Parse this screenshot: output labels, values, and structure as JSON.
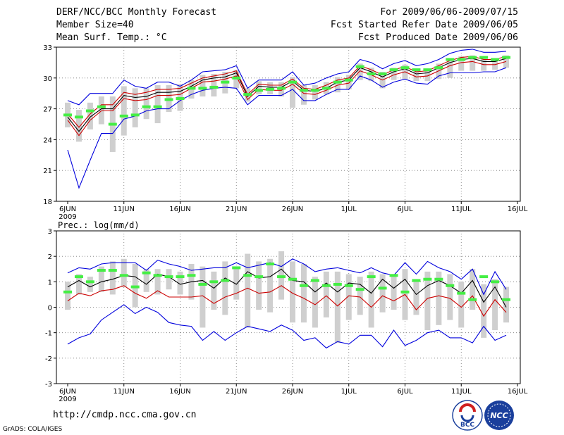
{
  "header": {
    "title": "DERF/NCC/BCC Monthly Forecast",
    "member_size": "Member Size=40",
    "variable": "Mean Surf. Temp.: °C",
    "period": "For 2009/06/06-2009/07/15",
    "fcst_started": "Fcst Started Refer Date 2009/06/05",
    "fcst_produced": "Fcst Produced Date 2009/06/06"
  },
  "footer": {
    "url": "http://cmdp.ncc.cma.gov.cn",
    "credit": "GrADS: COLA/IGES",
    "logo_left": "BCC",
    "logo_right": "NCC"
  },
  "chart_data": [
    {
      "type": "line",
      "title": "Mean Surf. Temp.: °C",
      "ylim": [
        18,
        33
      ],
      "yticks": [
        "18",
        "21",
        "24",
        "27",
        "30",
        "33"
      ],
      "xticks": [
        "6JUN",
        "11JUN",
        "16JUN",
        "21JUN",
        "26JUN",
        "1JUL",
        "6JUL",
        "11JUL",
        "16JUL"
      ],
      "year_label": "2009",
      "grid": true,
      "series": [
        {
          "name": "max",
          "color": "#0000dd",
          "values": [
            27.8,
            27.4,
            28.5,
            28.5,
            28.5,
            29.8,
            29.2,
            29.0,
            29.6,
            29.6,
            29.2,
            29.8,
            30.6,
            30.7,
            30.8,
            31.2,
            29.0,
            29.8,
            29.8,
            29.8,
            30.6,
            29.3,
            29.5,
            30.0,
            30.4,
            30.6,
            31.8,
            31.5,
            30.9,
            31.4,
            31.7,
            31.2,
            31.4,
            31.8,
            32.4,
            32.7,
            32.8,
            32.5,
            32.5,
            32.6
          ]
        },
        {
          "name": "upper",
          "color": "#cc0000",
          "values": [
            26.5,
            25.2,
            26.5,
            27.4,
            27.4,
            28.6,
            28.4,
            28.6,
            28.9,
            28.9,
            29.0,
            29.5,
            30.0,
            30.2,
            30.4,
            30.7,
            28.4,
            29.4,
            29.3,
            29.3,
            29.9,
            29.0,
            28.9,
            29.3,
            29.8,
            30.0,
            31.2,
            30.8,
            30.3,
            30.8,
            31.1,
            30.6,
            30.7,
            31.2,
            31.7,
            32.0,
            32.1,
            31.8,
            31.8,
            32.1
          ]
        },
        {
          "name": "mean",
          "color": "#000000",
          "values": [
            26.2,
            24.8,
            26.2,
            27.0,
            27.0,
            28.3,
            28.1,
            28.2,
            28.6,
            28.6,
            28.7,
            29.2,
            29.8,
            30.0,
            30.1,
            30.5,
            28.2,
            29.2,
            29.1,
            29.1,
            29.7,
            28.8,
            28.7,
            29.0,
            29.6,
            29.8,
            31.0,
            30.6,
            30.1,
            30.6,
            30.9,
            30.4,
            30.5,
            31.0,
            31.5,
            31.8,
            31.9,
            31.6,
            31.6,
            31.9
          ]
        },
        {
          "name": "lower",
          "color": "#cc0000",
          "values": [
            25.9,
            24.4,
            25.9,
            26.8,
            26.8,
            28.0,
            27.8,
            27.9,
            28.3,
            28.3,
            28.4,
            29.0,
            29.6,
            29.7,
            29.9,
            30.2,
            27.9,
            28.9,
            28.8,
            28.8,
            29.4,
            28.5,
            28.4,
            28.8,
            29.3,
            29.5,
            30.7,
            30.3,
            29.8,
            30.3,
            30.6,
            30.1,
            30.2,
            30.7,
            31.2,
            31.5,
            31.6,
            31.3,
            31.3,
            31.6
          ]
        },
        {
          "name": "min",
          "color": "#0000dd",
          "values": [
            23.0,
            19.3,
            22.0,
            24.6,
            24.6,
            26.0,
            26.3,
            26.8,
            27.0,
            27.0,
            27.8,
            28.4,
            28.8,
            29.0,
            29.1,
            29.0,
            27.4,
            28.3,
            28.3,
            28.3,
            28.9,
            27.8,
            27.8,
            28.4,
            28.9,
            28.9,
            30.2,
            29.8,
            29.1,
            29.6,
            29.9,
            29.5,
            29.4,
            30.2,
            30.5,
            30.5,
            30.5,
            30.6,
            30.6,
            31.0
          ]
        },
        {
          "name": "green_marker",
          "color": "#44ee44",
          "values": [
            26.4,
            26.2,
            26.8,
            27.2,
            25.5,
            26.3,
            26.4,
            27.2,
            27.2,
            27.9,
            28.0,
            29.0,
            29.0,
            29.1,
            29.6,
            30.0,
            28.4,
            28.8,
            28.9,
            29.0,
            29.6,
            28.8,
            28.8,
            29.0,
            29.6,
            29.8,
            31.1,
            30.4,
            30.4,
            30.8,
            31.0,
            30.8,
            30.8,
            31.0,
            31.8,
            31.8,
            32.0,
            32.0,
            31.8,
            32.0
          ]
        }
      ],
      "gray_bars": {
        "top": [
          27.6,
          26.9,
          27.6,
          28.2,
          28.2,
          29.2,
          29.0,
          29.0,
          29.3,
          29.3,
          29.4,
          29.8,
          30.3,
          30.4,
          30.6,
          30.8,
          29.0,
          29.7,
          29.6,
          29.6,
          30.1,
          29.3,
          29.3,
          29.6,
          30.1,
          30.3,
          31.4,
          31.0,
          30.6,
          31.0,
          31.3,
          30.9,
          30.9,
          31.4,
          31.9,
          32.1,
          32.2,
          31.9,
          31.9,
          32.2
        ],
        "bottom": [
          25.2,
          23.8,
          25.0,
          25.5,
          22.8,
          24.4,
          25.2,
          26.0,
          25.6,
          26.7,
          26.8,
          28.0,
          28.2,
          28.2,
          28.5,
          29.0,
          27.7,
          28.4,
          28.4,
          28.2,
          27.1,
          27.4,
          27.9,
          28.4,
          28.6,
          28.9,
          29.8,
          29.7,
          29.0,
          29.8,
          29.9,
          29.7,
          29.7,
          29.9,
          30.0,
          30.7,
          30.7,
          30.7,
          30.8,
          31.0
        ]
      }
    },
    {
      "type": "line",
      "title": "Prec.: log(mm/d)",
      "ylim": [
        -3,
        3
      ],
      "yticks": [
        "-3",
        "-2",
        "-1",
        "0",
        "1",
        "2",
        "3"
      ],
      "xticks": [
        "6JUN",
        "11JUN",
        "16JUN",
        "21JUN",
        "26JUN",
        "1JUL",
        "6JUL",
        "11JUL",
        "16JUL"
      ],
      "year_label": "2009",
      "grid": true,
      "series": [
        {
          "name": "max",
          "color": "#0000dd",
          "values": [
            1.35,
            1.55,
            1.5,
            1.7,
            1.75,
            1.75,
            1.75,
            1.45,
            1.85,
            1.7,
            1.6,
            1.45,
            1.5,
            1.55,
            1.55,
            1.75,
            1.55,
            1.65,
            1.75,
            1.6,
            1.9,
            1.7,
            1.4,
            1.5,
            1.55,
            1.45,
            1.35,
            1.55,
            1.35,
            1.25,
            1.75,
            1.3,
            1.8,
            1.55,
            1.4,
            1.1,
            1.5,
            0.5,
            1.4,
            0.7
          ]
        },
        {
          "name": "upper",
          "color": "#000000",
          "values": [
            0.8,
            1.05,
            0.8,
            1.0,
            1.1,
            1.25,
            1.2,
            0.9,
            1.3,
            1.2,
            0.9,
            1.0,
            1.05,
            0.75,
            1.15,
            0.9,
            1.4,
            1.15,
            1.2,
            1.5,
            1.05,
            1.0,
            0.6,
            0.95,
            0.6,
            0.95,
            0.9,
            0.55,
            1.1,
            0.75,
            1.1,
            0.5,
            0.85,
            1.05,
            0.85,
            0.55,
            1.05,
            0.2,
            0.8,
            0.0
          ]
        },
        {
          "name": "mean",
          "color": "#cc0000",
          "values": [
            0.25,
            0.55,
            0.45,
            0.65,
            0.7,
            0.85,
            0.55,
            0.35,
            0.65,
            0.4,
            0.4,
            0.4,
            0.45,
            0.15,
            0.4,
            0.55,
            0.75,
            0.55,
            0.6,
            0.85,
            0.55,
            0.35,
            0.1,
            0.45,
            0.05,
            0.45,
            0.4,
            0.0,
            0.45,
            0.25,
            0.5,
            -0.1,
            0.35,
            0.45,
            0.35,
            0.0,
            0.45,
            -0.35,
            0.3,
            -0.2
          ]
        },
        {
          "name": "min",
          "color": "#0000dd",
          "values": [
            -1.45,
            -1.2,
            -1.05,
            -0.5,
            -0.2,
            0.1,
            -0.25,
            0.0,
            -0.2,
            -0.6,
            -0.7,
            -0.75,
            -1.3,
            -0.95,
            -1.3,
            -1.0,
            -0.75,
            -0.85,
            -0.95,
            -0.7,
            -0.9,
            -1.3,
            -1.2,
            -1.6,
            -1.35,
            -1.45,
            -1.1,
            -1.1,
            -1.55,
            -0.9,
            -1.5,
            -1.3,
            -1.0,
            -0.9,
            -1.2,
            -1.2,
            -1.4,
            -0.75,
            -1.3,
            -1.1
          ]
        },
        {
          "name": "green_marker",
          "color": "#44ee44",
          "values": [
            0.6,
            1.2,
            1.0,
            1.45,
            1.45,
            1.25,
            0.8,
            1.35,
            1.25,
            1.2,
            1.2,
            1.25,
            0.9,
            1.0,
            1.05,
            1.55,
            1.25,
            1.2,
            1.7,
            1.2,
            1.1,
            0.85,
            1.05,
            0.85,
            0.9,
            0.85,
            0.7,
            1.2,
            0.75,
            1.25,
            0.6,
            1.05,
            1.1,
            1.1,
            0.85,
            0.55,
            0.3,
            1.2,
            1.0,
            0.3
          ]
        }
      ],
      "gray_bars": {
        "top": [
          1.0,
          1.3,
          1.2,
          1.6,
          1.8,
          1.9,
          1.7,
          1.5,
          1.5,
          1.5,
          1.4,
          1.7,
          1.6,
          1.4,
          1.8,
          1.5,
          2.1,
          1.8,
          1.9,
          2.2,
          1.8,
          1.7,
          1.2,
          1.4,
          1.4,
          1.3,
          1.2,
          1.4,
          1.3,
          1.3,
          1.5,
          1.1,
          1.4,
          1.4,
          1.3,
          1.0,
          1.5,
          0.9,
          1.1,
          0.8
        ],
        "bottom": [
          -0.1,
          0.5,
          0.6,
          0.6,
          0.5,
          0.8,
          0.0,
          0.6,
          0.5,
          0.7,
          0.5,
          0.3,
          -0.8,
          -0.1,
          -0.3,
          0.3,
          -0.8,
          -0.1,
          -0.2,
          0.3,
          -0.6,
          -0.6,
          -0.8,
          -0.4,
          -1.4,
          -0.5,
          -0.3,
          -0.8,
          -0.2,
          -0.1,
          -0.5,
          -0.3,
          -0.9,
          -0.7,
          -0.5,
          -0.8,
          -0.1,
          -1.2,
          -0.9,
          -0.6
        ]
      }
    }
  ]
}
